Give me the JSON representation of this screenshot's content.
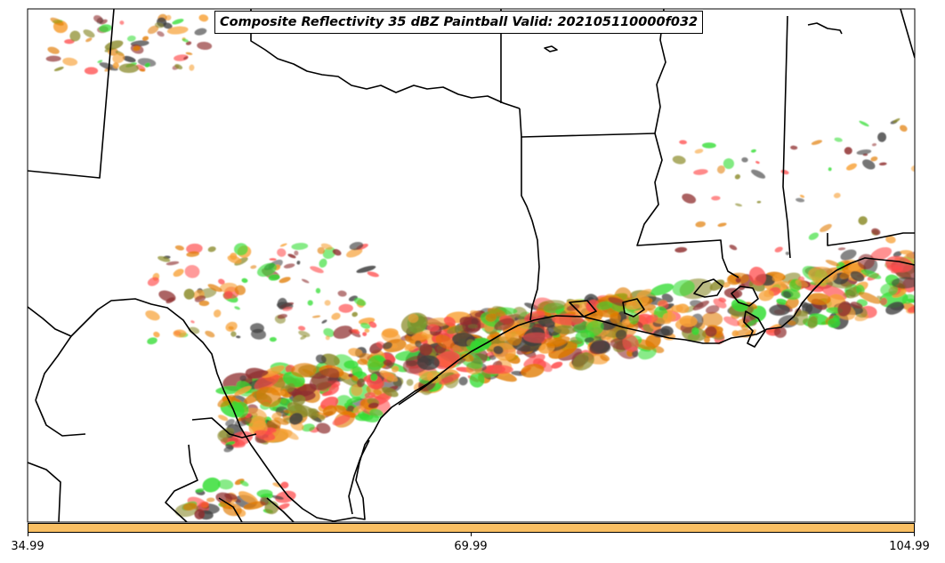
{
  "title": "Composite Reflectivity 35 dBZ Paintball Valid: 202105110000f032",
  "colorbar": {
    "fill_color": "#f9bf63",
    "tick_labels": [
      "34.99",
      "69.99",
      "104.99"
    ]
  },
  "map": {
    "ensemble_member_colors": [
      "#ff4b4b",
      "#33dd33",
      "#8f2f2f",
      "#f7a035",
      "#8b8b2b",
      "#404040",
      "#e07a00"
    ]
  }
}
